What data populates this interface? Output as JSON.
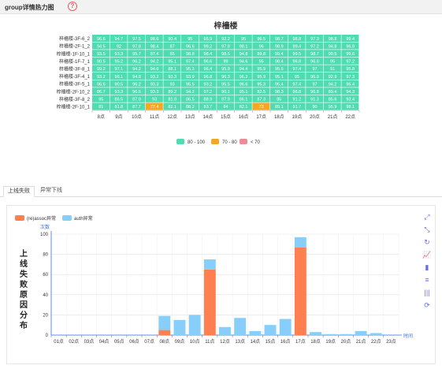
{
  "header": {
    "title": "group详情热力图",
    "help_icon": "question-circle-icon"
  },
  "tabs": [
    {
      "label": "上线失败",
      "active": true
    },
    {
      "label": "异常下线",
      "active": false
    }
  ],
  "colors": {
    "high": "#4fdcb0",
    "mid": "#f5a623",
    "low": "#ef8a99",
    "series_reassoc": "#ff7f50",
    "series_auth": "#87cefa",
    "tool": "#6b6ee0"
  },
  "toolbox": [
    {
      "icon": "zoom-brush-icon",
      "symbol": "⤢"
    },
    {
      "icon": "zoom-reset-icon",
      "symbol": "⤡"
    },
    {
      "icon": "refresh-icon",
      "symbol": "↻"
    },
    {
      "icon": "line-chart-icon",
      "symbol": "📈"
    },
    {
      "icon": "bar-chart-icon",
      "symbol": "▮"
    },
    {
      "icon": "stack-icon",
      "symbol": "≡"
    },
    {
      "icon": "tiled-icon",
      "symbol": "|||"
    },
    {
      "icon": "restore-icon",
      "symbol": "⟳"
    }
  ],
  "chart_data": [
    {
      "type": "heatmap",
      "title": "梓檣楼",
      "x_labels": [
        "8点",
        "9点",
        "10点",
        "11点",
        "12点",
        "13点",
        "14点",
        "15点",
        "16点",
        "17点",
        "18点",
        "19点",
        "20点",
        "21点",
        "22点"
      ],
      "y_labels": [
        "梓檣楼-3F-6_2",
        "梓檣楼-2F-1_2",
        "梓檣楼-1F-10_1",
        "梓檣楼-1F-7_1",
        "梓檣楼-3F-8_1",
        "梓檣楼-3F-4_1",
        "梓檣楼-3F-5_1",
        "梓檣楼-2F-10_2",
        "梓檣楼-3F-8_2",
        "梓檣楼-2F-10_1"
      ],
      "values": [
        [
          96.6,
          94.7,
          97.5,
          98.6,
          90.4,
          95,
          95.9,
          92.2,
          95,
          96.5,
          98.7,
          98.8,
          97.3,
          98.8,
          99.4
        ],
        [
          94.5,
          92,
          97.8,
          98.4,
          87,
          96.6,
          99.2,
          97.8,
          98.1,
          96,
          98.9,
          99.4,
          97.2,
          94.8,
          96.8
        ],
        [
          93.5,
          93.3,
          95.7,
          87.4,
          85,
          98.8,
          98.4,
          98.5,
          94.8,
          89.8,
          99.4,
          99.5,
          98.7,
          99.5,
          99.6
        ],
        [
          90.5,
          95.2,
          96.2,
          94.2,
          95.1,
          97.4,
          96.6,
          99,
          94.6,
          95,
          98.4,
          96.8,
          96.6,
          95,
          97.2
        ],
        [
          99.2,
          97.1,
          94.2,
          94.6,
          88.1,
          95.3,
          96.4,
          95.9,
          94.4,
          95.9,
          95.5,
          97.4,
          97,
          91,
          95.8
        ],
        [
          93.2,
          96.1,
          94.8,
          93.2,
          93.3,
          93.9,
          96.8,
          96.3,
          96.2,
          95.9,
          95.1,
          95,
          96.9,
          92.9,
          97.3
        ],
        [
          96.6,
          90.5,
          96.2,
          93.3,
          93,
          95.5,
          93.2,
          95.5,
          96.6,
          95.3,
          95.4,
          97.4,
          97,
          94.2,
          96.4
        ],
        [
          86.7,
          93.3,
          96.6,
          93.3,
          89.2,
          94.2,
          97.2,
          90.1,
          95.1,
          82.5,
          98.3,
          98.8,
          96.8,
          89.4,
          94.3
        ],
        [
          95,
          86.5,
          87.9,
          93,
          81.8,
          86.5,
          88.9,
          87.9,
          86.1,
          87.3,
          85,
          91.2,
          91.3,
          85.6,
          93.4
        ],
        [
          81,
          81.8,
          87.7,
          77.4,
          82.1,
          88.2,
          83.7,
          84,
          82.1,
          73,
          89.1,
          91.7,
          90,
          95.9,
          98.1
        ]
      ],
      "legend": [
        "80 - 100",
        "70 - 80",
        "< 70"
      ]
    },
    {
      "type": "bar",
      "ylabel": "上线失败原因分布",
      "y_unit": "次数",
      "x_axis_name": "时间",
      "ylim": [
        0,
        100
      ],
      "y_ticks": [
        0,
        20,
        40,
        60,
        80,
        100
      ],
      "stacked": true,
      "categories": [
        "01点",
        "02点",
        "03点",
        "04点",
        "05点",
        "06点",
        "07点",
        "08点",
        "09点",
        "10点",
        "11点",
        "12点",
        "13点",
        "14点",
        "15点",
        "16点",
        "17点",
        "18点",
        "19点",
        "20点",
        "21点",
        "22点",
        "23点"
      ],
      "series": [
        {
          "name": "(re)assoc异常",
          "values": [
            0,
            0,
            0,
            0,
            0,
            0,
            0,
            5,
            0,
            0,
            65,
            0,
            0,
            0,
            0,
            0,
            87,
            0,
            0,
            0,
            0,
            0,
            0
          ]
        },
        {
          "name": "auth异常",
          "values": [
            0,
            0,
            0,
            0,
            0,
            0,
            0,
            14,
            15,
            20,
            10,
            8,
            17,
            4,
            10,
            16,
            10,
            3,
            1,
            1,
            4,
            2,
            0
          ]
        }
      ]
    }
  ]
}
